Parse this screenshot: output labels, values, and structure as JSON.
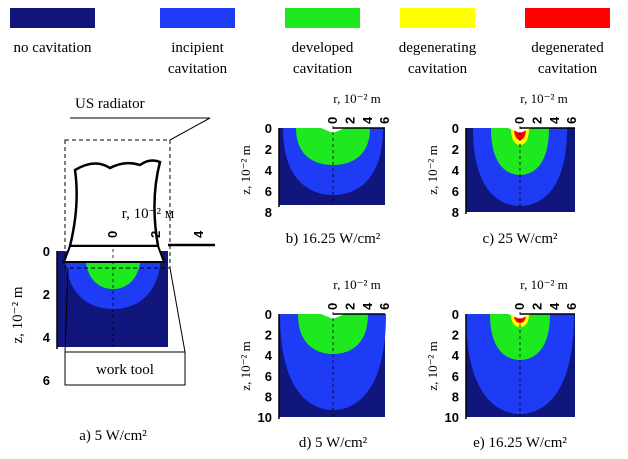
{
  "legend": [
    {
      "lines": [
        "no cavitation"
      ],
      "color": "#10167c"
    },
    {
      "lines": [
        "incipient",
        "cavitation"
      ],
      "color": "#1e3cf5"
    },
    {
      "lines": [
        "developed",
        "cavitation"
      ],
      "color": "#1ee81e"
    },
    {
      "lines": [
        "degenerating",
        "cavitation"
      ],
      "color": "#ffff00"
    },
    {
      "lines": [
        "degenerated",
        "cavitation"
      ],
      "color": "#ff0000"
    }
  ],
  "radiator_label": "US radiator",
  "tool_label": "work tool",
  "panels": [
    {
      "caption": "a) 5 W/cm²",
      "r_label": "r, 10⁻² м",
      "z_label": "z, 10⁻² m",
      "r_ticks": [
        0,
        2,
        4
      ],
      "z_ticks": [
        0,
        2,
        4,
        6
      ]
    },
    {
      "caption": "b) 16.25 W/cm²",
      "r_label": "r, 10⁻² m",
      "z_label": "z, 10⁻² m",
      "r_ticks": [
        0,
        2,
        4,
        6
      ],
      "z_ticks": [
        0,
        2,
        4,
        6,
        8
      ]
    },
    {
      "caption": "c) 25 W/cm²",
      "r_label": "r, 10⁻² m",
      "z_label": "z, 10⁻² m",
      "r_ticks": [
        0,
        2,
        4,
        6
      ],
      "z_ticks": [
        0,
        2,
        4,
        6,
        8
      ]
    },
    {
      "caption": "d) 5 W/cm²",
      "r_label": "r, 10⁻² m",
      "z_label": "z, 10⁻² m",
      "r_ticks": [
        0,
        2,
        4,
        6
      ],
      "z_ticks": [
        0,
        2,
        4,
        6,
        8,
        10
      ]
    },
    {
      "caption": "e) 16.25 W/cm²",
      "r_label": "r, 10⁻² m",
      "z_label": "z, 10⁻² m",
      "r_ticks": [
        0,
        2,
        4,
        6
      ],
      "z_ticks": [
        0,
        2,
        4,
        6,
        8,
        10
      ]
    }
  ]
}
